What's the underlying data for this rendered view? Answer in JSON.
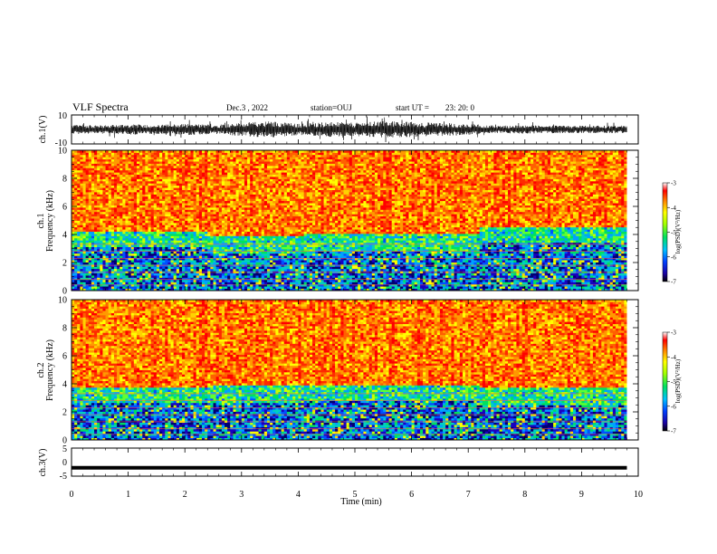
{
  "header": {
    "title": "VLF Spectra",
    "date": "Dec.3 , 2022",
    "station": "station=OUJ",
    "start_label": "start UT =",
    "start_time": "23: 20: 0"
  },
  "chart_data": [
    {
      "type": "line",
      "name": "ch1-waveform",
      "ylabel": "ch.1(V)",
      "ylim": [
        -10,
        10
      ],
      "yticks": [
        "10",
        "-10"
      ],
      "xlim": [
        0,
        10
      ],
      "envelope": [
        {
          "x": 0,
          "amp": 2.5
        },
        {
          "x": 0.5,
          "amp": 2.2
        },
        {
          "x": 1,
          "amp": 2.8
        },
        {
          "x": 1.5,
          "amp": 2.4
        },
        {
          "x": 2,
          "amp": 3.0
        },
        {
          "x": 2.5,
          "amp": 2.5
        },
        {
          "x": 3,
          "amp": 3.5
        },
        {
          "x": 3.5,
          "amp": 4.5
        },
        {
          "x": 4,
          "amp": 3.0
        },
        {
          "x": 4.5,
          "amp": 4.0
        },
        {
          "x": 5,
          "amp": 3.5
        },
        {
          "x": 5.5,
          "amp": 4.5
        },
        {
          "x": 6,
          "amp": 4.0
        },
        {
          "x": 6.5,
          "amp": 3.5
        },
        {
          "x": 7,
          "amp": 3.0
        },
        {
          "x": 7.5,
          "amp": 2.0
        },
        {
          "x": 8,
          "amp": 2.2
        },
        {
          "x": 8.5,
          "amp": 2.0
        },
        {
          "x": 9,
          "amp": 2.0
        },
        {
          "x": 9.5,
          "amp": 2.0
        },
        {
          "x": 9.8,
          "amp": 2.0
        }
      ]
    },
    {
      "type": "heatmap",
      "name": "ch1-spectrogram",
      "ylabel": "ch.1\nFrequency (kHz)",
      "ylim": [
        0,
        10
      ],
      "xlim": [
        0,
        9.8
      ],
      "yticks": [
        "0",
        "2",
        "4",
        "6",
        "8",
        "10"
      ],
      "colorbar": {
        "label": "log(PSD)(V²/Hz)",
        "ticks": [
          "-3",
          "-4",
          "-5",
          "-6",
          "-7"
        ],
        "range": [
          -7,
          -3
        ]
      },
      "segments": [
        {
          "x0": 0,
          "x1": 2.4,
          "quiet_top_khz": 4.2
        },
        {
          "x0": 2.4,
          "x1": 4.1,
          "quiet_top_khz": 3.8
        },
        {
          "x0": 4.1,
          "x1": 7.2,
          "quiet_top_khz": 4.0
        },
        {
          "x0": 7.2,
          "x1": 9.8,
          "quiet_top_khz": 4.5
        }
      ]
    },
    {
      "type": "heatmap",
      "name": "ch2-spectrogram",
      "ylabel": "ch.2\nFrequency (kHz)",
      "ylim": [
        0,
        10
      ],
      "xlim": [
        0,
        9.8
      ],
      "yticks": [
        "0",
        "2",
        "4",
        "6",
        "8",
        "10"
      ],
      "colorbar": {
        "label": "log(PSD)(V²/Hz)",
        "ticks": [
          "-3",
          "-4",
          "-5",
          "-6",
          "-7"
        ],
        "range": [
          -7,
          -3
        ]
      },
      "segments": [
        {
          "x0": 0,
          "x1": 2.4,
          "quiet_top_khz": 3.7
        },
        {
          "x0": 2.4,
          "x1": 4.1,
          "quiet_top_khz": 3.8
        },
        {
          "x0": 4.1,
          "x1": 7.2,
          "quiet_top_khz": 3.9
        },
        {
          "x0": 7.2,
          "x1": 9.8,
          "quiet_top_khz": 3.6
        }
      ]
    },
    {
      "type": "line",
      "name": "ch3-trace",
      "ylabel": "ch.3(V)",
      "ylim": [
        -5,
        5
      ],
      "yticks": [
        "5",
        "0",
        "-5"
      ],
      "xlim": [
        0,
        10
      ],
      "value": -2.0
    }
  ],
  "xaxis": {
    "label": "Time (min)",
    "ticks": [
      "0",
      "1",
      "2",
      "3",
      "4",
      "5",
      "6",
      "7",
      "8",
      "9",
      "10"
    ]
  }
}
